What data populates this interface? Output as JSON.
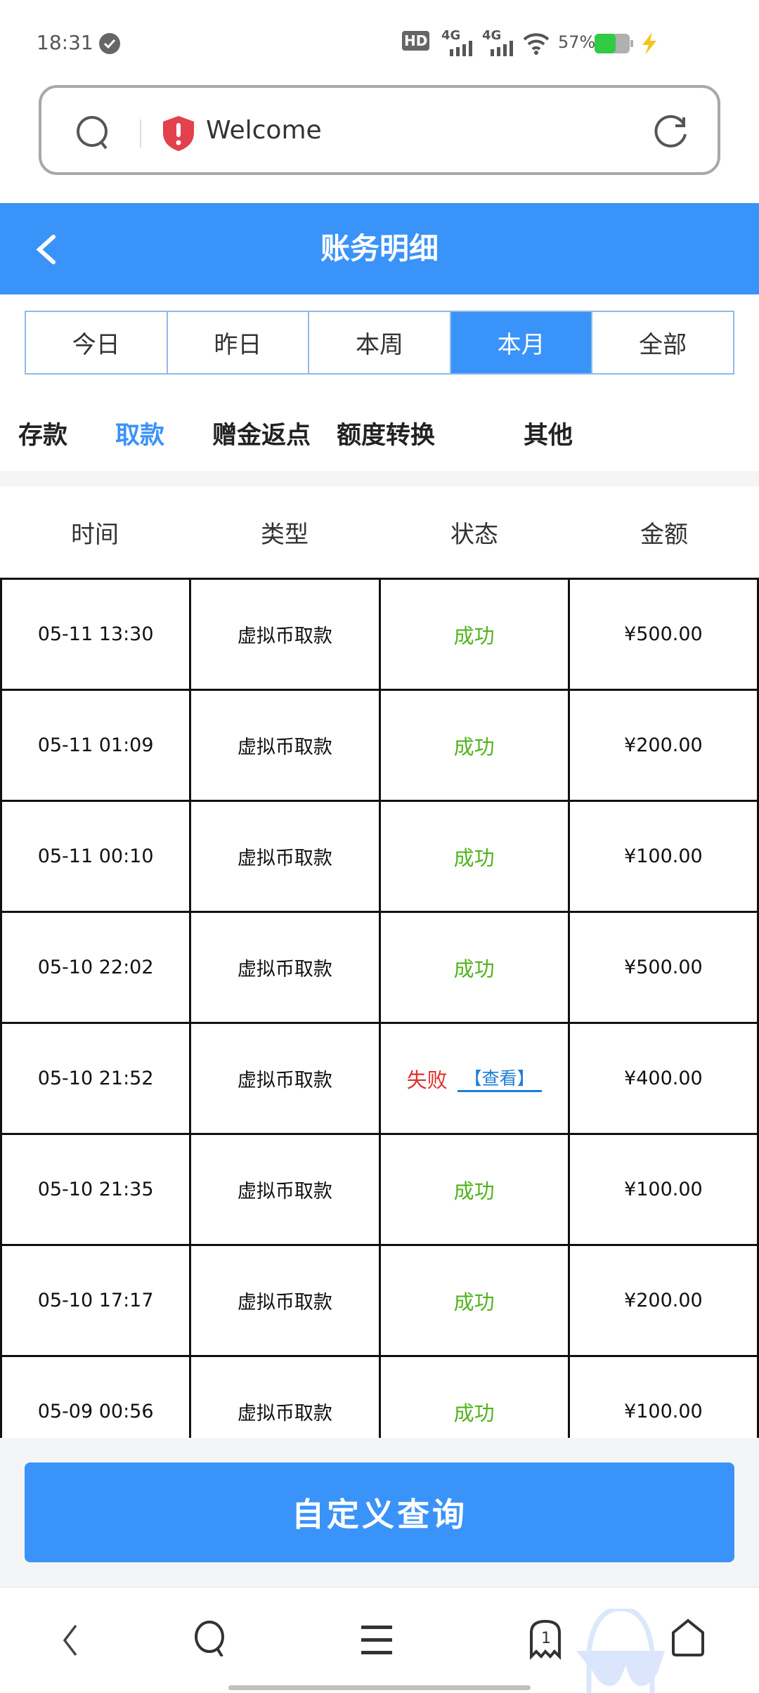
{
  "status_bar": {
    "time": "18:31",
    "battery": "57%",
    "network": [
      "4G",
      "4G"
    ]
  },
  "url_bar": {
    "text": "Welcome"
  },
  "header": {
    "title": "账务明细"
  },
  "periods": [
    {
      "label": "今日"
    },
    {
      "label": "昨日"
    },
    {
      "label": "本周"
    },
    {
      "label": "本月",
      "active": true
    },
    {
      "label": "全部"
    }
  ],
  "categories": [
    {
      "label": "存款"
    },
    {
      "label": "取款",
      "active": true
    },
    {
      "label": "赠金返点"
    },
    {
      "label": "额度转换"
    },
    {
      "label": "其他"
    }
  ],
  "table": {
    "headers": [
      "时间",
      "类型",
      "状态",
      "金额"
    ],
    "rows": [
      {
        "time": "05-11 13:30",
        "type": "虚拟币取款",
        "status": "成功",
        "amount": "¥500.00"
      },
      {
        "time": "05-11 01:09",
        "type": "虚拟币取款",
        "status": "成功",
        "amount": "¥200.00"
      },
      {
        "time": "05-11 00:10",
        "type": "虚拟币取款",
        "status": "成功",
        "amount": "¥100.00"
      },
      {
        "time": "05-10 22:02",
        "type": "虚拟币取款",
        "status": "成功",
        "amount": "¥500.00"
      },
      {
        "time": "05-10 21:52",
        "type": "虚拟币取款",
        "status": "失败",
        "link": "【查看】",
        "amount": "¥400.00"
      },
      {
        "time": "05-10 21:35",
        "type": "虚拟币取款",
        "status": "成功",
        "amount": "¥100.00"
      },
      {
        "time": "05-10 17:17",
        "type": "虚拟币取款",
        "status": "成功",
        "amount": "¥200.00"
      },
      {
        "time": "05-09 00:56",
        "type": "虚拟币取款",
        "status": "成功",
        "amount": "¥100.00"
      }
    ]
  },
  "query_button": {
    "label": "自定义查询"
  },
  "bottom_nav": {
    "tab_count": "1"
  },
  "colors": {
    "accent": "#3a93f8",
    "success": "#52b41c",
    "fail": "#e0302b",
    "link": "#1c7fd6"
  }
}
